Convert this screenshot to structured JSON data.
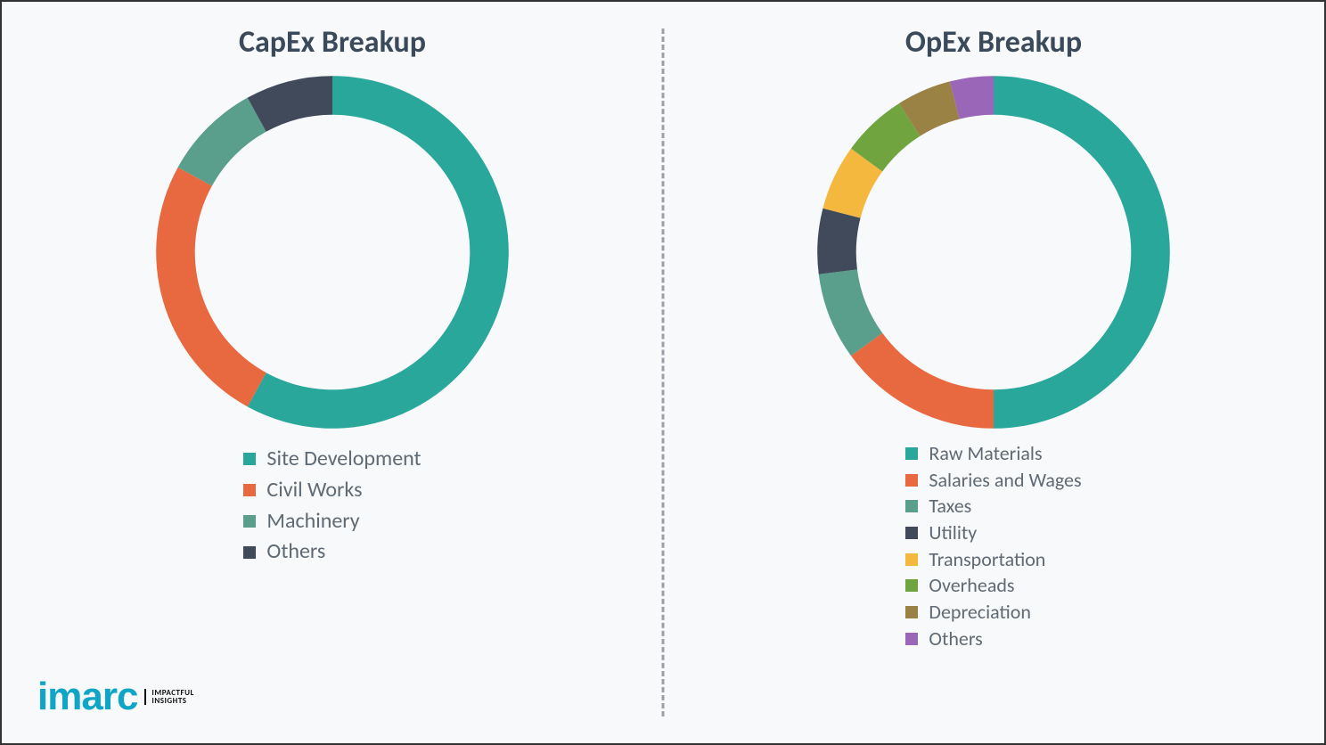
{
  "background_color": "#f7f9fa",
  "frame_border_color": "#333333",
  "divider_color": "#9aa0a6",
  "title_color": "#3b4a5a",
  "legend_text_color": "#5f6a74",
  "title_fontsize": 34,
  "legend_fontsize": 24,
  "capex": {
    "title": "CapEx Breakup",
    "type": "donut",
    "ring_thickness_pct": 22,
    "start_angle_deg": 0,
    "direction": "clockwise",
    "slices": [
      {
        "label": "Site Development",
        "value": 58,
        "color": "#2aa79b"
      },
      {
        "label": "Civil Works",
        "value": 25,
        "color": "#e8683f"
      },
      {
        "label": "Machinery",
        "value": 9,
        "color": "#5a9e8c"
      },
      {
        "label": "Others",
        "value": 8,
        "color": "#414a5a"
      }
    ]
  },
  "opex": {
    "title": "OpEx Breakup",
    "type": "donut",
    "ring_thickness_pct": 22,
    "start_angle_deg": 0,
    "direction": "clockwise",
    "slices": [
      {
        "label": "Raw Materials",
        "value": 50,
        "color": "#2aa79b"
      },
      {
        "label": "Salaries and Wages",
        "value": 15,
        "color": "#e8683f"
      },
      {
        "label": "Taxes",
        "value": 8,
        "color": "#5a9e8c"
      },
      {
        "label": "Utility",
        "value": 6,
        "color": "#414a5a"
      },
      {
        "label": "Transportation",
        "value": 6,
        "color": "#f4b83f"
      },
      {
        "label": "Overheads",
        "value": 6,
        "color": "#6fa43f"
      },
      {
        "label": "Depreciation",
        "value": 5,
        "color": "#9a8144"
      },
      {
        "label": "Others",
        "value": 4,
        "color": "#9a66b8"
      }
    ]
  },
  "logo": {
    "brand": "imarc",
    "brand_color": "#0ea5c6",
    "tagline_line1": "IMPACTFUL",
    "tagline_line2": "INSIGHTS",
    "tagline_color": "#111111"
  }
}
